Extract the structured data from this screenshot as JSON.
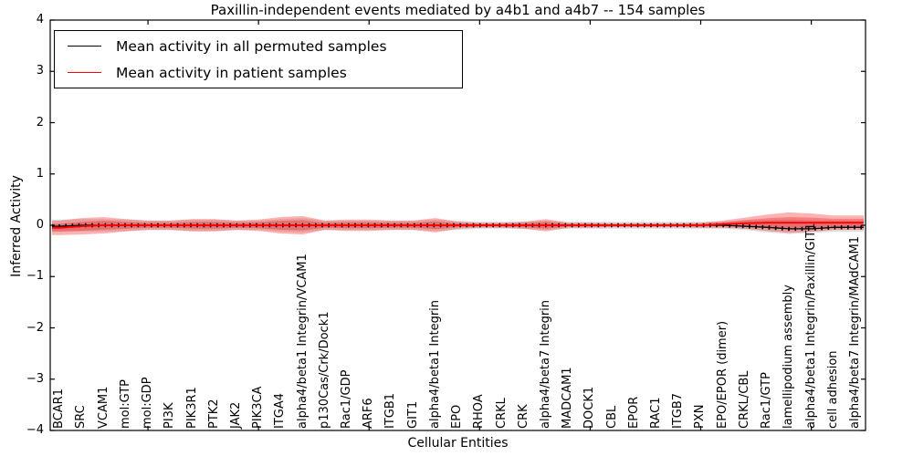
{
  "title": "Paxillin-independent events mediated by a4b1 and a4b7 -- 154 samples",
  "legend": {
    "items": [
      {
        "label": "Mean activity in all permuted samples",
        "color": "#000000"
      },
      {
        "label": "Mean activity in patient samples",
        "color": "#ff0000"
      }
    ]
  },
  "axes": {
    "xlabel": "Cellular Entities",
    "ylabel": "Inferred Activity",
    "yticks": [
      {
        "v": 4,
        "label": "4"
      },
      {
        "v": 3,
        "label": "3"
      },
      {
        "v": 2,
        "label": "2"
      },
      {
        "v": 1,
        "label": "1"
      },
      {
        "v": 0,
        "label": "0"
      },
      {
        "v": -1,
        "label": "−1"
      },
      {
        "v": -2,
        "label": "−2"
      },
      {
        "v": -3,
        "label": "−3"
      },
      {
        "v": -4,
        "label": "−4"
      }
    ],
    "ylim": [
      -4,
      4
    ],
    "xtick_mark_indices": [
      4,
      9,
      14,
      19,
      24,
      29,
      34
    ]
  },
  "chart_data": {
    "type": "area",
    "title": "Paxillin-independent events mediated by a4b1 and a4b7 -- 154 samples",
    "xlabel": "Cellular Entities",
    "ylabel": "Inferred Activity",
    "ylim": [
      -4,
      4
    ],
    "legend_position": "upper left",
    "grid": false,
    "categories": [
      "BCAR1",
      "SRC",
      "VCAM1",
      "mol:GTP",
      "mol:GDP",
      "PI3K",
      "PIK3R1",
      "PTK2",
      "JAK2",
      "PIK3CA",
      "ITGA4",
      "alpha4/beta1 Integrin/VCAM1",
      "p130Cas/Crk/Dock1",
      "Rac1/GDP",
      "ARF6",
      "ITGB1",
      "GIT1",
      "alpha4/beta1 Integrin",
      "EPO",
      "RHOA",
      "CRKL",
      "CRK",
      "alpha4/beta7 Integrin",
      "MADCAM1",
      "DOCK1",
      "CBL",
      "EPOR",
      "RAC1",
      "ITGB7",
      "PXN",
      "EPO/EPOR (dimer)",
      "CRKL/CBL",
      "Rac1/GTP",
      "lamellipodium assembly",
      "alpha4/beta1 Integrin/Paxillin/GIT1",
      "cell adhesion",
      "alpha4/beta7 Integrin/MAdCAM1"
    ],
    "series": [
      {
        "name": "Mean activity in all permuted samples",
        "color": "#000000",
        "values": [
          -0.02,
          0,
          0,
          0,
          0,
          0,
          0,
          0,
          0,
          0,
          0,
          0,
          0,
          0,
          0,
          0,
          0,
          0,
          0,
          0,
          0,
          0,
          0,
          0,
          0,
          0,
          0,
          0,
          0,
          0,
          0,
          -0.02,
          -0.04,
          -0.07,
          -0.07,
          -0.04,
          -0.04
        ]
      },
      {
        "name": "Mean activity in patient samples",
        "color": "#ff0000",
        "values": [
          -0.05,
          -0.02,
          0,
          0,
          0,
          0,
          0,
          0,
          0,
          0,
          0,
          0,
          0,
          0,
          0,
          0,
          0,
          0,
          0,
          0,
          0,
          0,
          0,
          0,
          0,
          0,
          0,
          0,
          0,
          0,
          0.02,
          0.04,
          0.05,
          0.05,
          0.05,
          0.05,
          0.05
        ]
      }
    ],
    "bands": [
      {
        "name": "permuted-sample-spread",
        "color": "#000000",
        "opacity": 0.12,
        "center": [
          0,
          0,
          0,
          0,
          0,
          0,
          0,
          0,
          0,
          0,
          0,
          0,
          0,
          0,
          0,
          0,
          0,
          0,
          0,
          0,
          0,
          0,
          0,
          0,
          0,
          0,
          0,
          0,
          0,
          0,
          0,
          0,
          -0.02,
          -0.03,
          -0.03,
          -0.02,
          -0.02
        ],
        "half_width": [
          0.11,
          0.12,
          0.12,
          0.11,
          0.09,
          0.09,
          0.11,
          0.11,
          0.09,
          0.09,
          0.12,
          0.14,
          0.09,
          0.09,
          0.09,
          0.09,
          0.09,
          0.11,
          0.09,
          0.07,
          0.07,
          0.07,
          0.09,
          0.07,
          0.07,
          0.07,
          0.07,
          0.07,
          0.07,
          0.07,
          0.07,
          0.09,
          0.12,
          0.14,
          0.12,
          0.11,
          0.11
        ]
      },
      {
        "name": "patient-sample-spread",
        "color": "#ff0000",
        "opacity": 0.3,
        "center": [
          -0.05,
          -0.02,
          0,
          0,
          0,
          0,
          0,
          0,
          0,
          0,
          0,
          0,
          0,
          0,
          0,
          0,
          0,
          0,
          0,
          0,
          0,
          0,
          0,
          0,
          0,
          0,
          0,
          0,
          0,
          0,
          0.02,
          0.04,
          0.05,
          0.05,
          0.05,
          0.05,
          0.05
        ],
        "half_width": [
          0.14,
          0.16,
          0.16,
          0.12,
          0.09,
          0.09,
          0.12,
          0.12,
          0.09,
          0.11,
          0.16,
          0.18,
          0.09,
          0.11,
          0.11,
          0.09,
          0.09,
          0.14,
          0.07,
          0.05,
          0.05,
          0.07,
          0.12,
          0.05,
          0.05,
          0.04,
          0.04,
          0.04,
          0.04,
          0.05,
          0.07,
          0.11,
          0.16,
          0.2,
          0.18,
          0.14,
          0.14
        ]
      }
    ]
  }
}
